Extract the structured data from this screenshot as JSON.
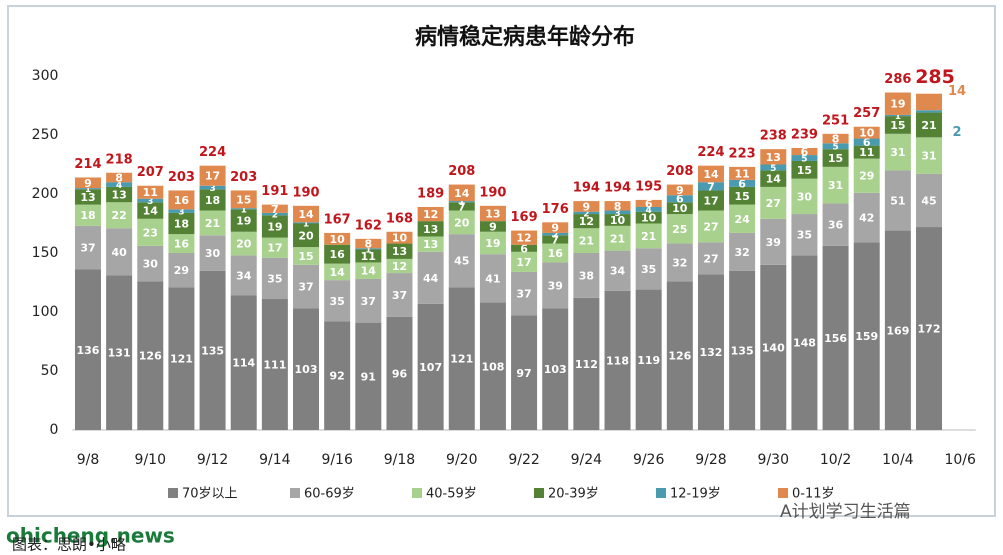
{
  "chart_data": {
    "type": "stacked_bar",
    "title": "病情稳定病患年龄分布",
    "categories": [
      "9/8",
      null,
      "9/10",
      null,
      "9/12",
      null,
      "9/14",
      null,
      "9/16",
      null,
      "9/18",
      null,
      "9/20",
      null,
      "9/22",
      null,
      "9/24",
      null,
      "9/26",
      null,
      "9/28",
      null,
      "9/30",
      null,
      "10/2",
      null,
      "10/4",
      null,
      "10/6"
    ],
    "series": [
      {
        "name": "70岁以上",
        "color": "#808080",
        "values": [
          136,
          131,
          126,
          121,
          135,
          114,
          111,
          103,
          92,
          91,
          96,
          107,
          121,
          108,
          97,
          103,
          112,
          118,
          119,
          126,
          132,
          135,
          140,
          148,
          156,
          159,
          169,
          172,
          null
        ]
      },
      {
        "name": "60-69岁",
        "color": "#a6a6a6",
        "values": [
          37,
          40,
          30,
          29,
          30,
          34,
          35,
          37,
          35,
          37,
          37,
          44,
          45,
          41,
          37,
          39,
          38,
          34,
          35,
          32,
          27,
          32,
          39,
          35,
          36,
          42,
          51,
          45,
          null
        ]
      },
      {
        "name": "40-59岁",
        "color": "#a9d18e",
        "values": [
          18,
          22,
          23,
          16,
          21,
          20,
          17,
          15,
          14,
          14,
          12,
          13,
          20,
          19,
          17,
          16,
          21,
          21,
          21,
          25,
          27,
          24,
          27,
          30,
          31,
          29,
          31,
          31,
          null
        ]
      },
      {
        "name": "20-39岁",
        "color": "#548235",
        "values": [
          13,
          13,
          14,
          18,
          18,
          19,
          19,
          20,
          16,
          11,
          13,
          13,
          7,
          9,
          6,
          7,
          12,
          10,
          10,
          10,
          17,
          15,
          14,
          15,
          15,
          11,
          15,
          21,
          null
        ]
      },
      {
        "name": "12-19岁",
        "color": "#4a9bb0",
        "values": [
          1,
          4,
          3,
          3,
          3,
          1,
          2,
          1,
          0,
          1,
          0,
          0,
          1,
          0,
          0,
          2,
          2,
          3,
          4,
          6,
          7,
          6,
          5,
          5,
          5,
          6,
          1,
          2,
          null
        ]
      },
      {
        "name": "0-11岁",
        "color": "#e0894e",
        "values": [
          9,
          8,
          11,
          16,
          17,
          15,
          7,
          14,
          10,
          8,
          10,
          12,
          14,
          13,
          12,
          9,
          9,
          8,
          6,
          9,
          14,
          11,
          13,
          6,
          8,
          10,
          19,
          14,
          null
        ]
      }
    ],
    "totals": [
      214,
      218,
      207,
      203,
      224,
      203,
      191,
      190,
      167,
      162,
      168,
      189,
      208,
      190,
      169,
      176,
      194,
      194,
      195,
      208,
      224,
      223,
      238,
      239,
      251,
      257,
      286,
      285,
      null
    ],
    "ylim": [
      0,
      300
    ],
    "yticks": [
      0,
      50,
      100,
      150,
      200,
      250,
      300
    ],
    "footer": {
      "watermark": "ohicheng.news",
      "source": "图表：思朗•小略",
      "brand": "A计划学习生活篇"
    }
  }
}
